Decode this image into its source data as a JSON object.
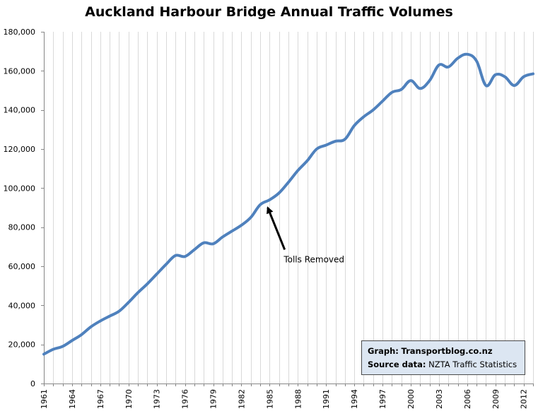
{
  "chart_data": {
    "type": "line",
    "title": "Auckland Harbour Bridge Annual Traffic Volumes",
    "xlabel": "",
    "ylabel": "",
    "xlim": [
      1961,
      2013
    ],
    "ylim": [
      0,
      180000
    ],
    "yticks": [
      0,
      20000,
      40000,
      60000,
      80000,
      100000,
      120000,
      140000,
      160000,
      180000
    ],
    "ytick_labels": [
      "0",
      "20,000",
      "40,000",
      "60,000",
      "80,000",
      "100,000",
      "120,000",
      "140,000",
      "160,000",
      "180,000"
    ],
    "xtick_labels": [
      "1961",
      "1964",
      "1967",
      "1970",
      "1973",
      "1976",
      "1979",
      "1982",
      "1985",
      "1988",
      "1991",
      "1994",
      "1997",
      "2000",
      "2003",
      "2006",
      "2009",
      "2012"
    ],
    "grid": "vertical-every-year",
    "series": [
      {
        "name": "Annual traffic volume",
        "color": "#4f81bd",
        "x": [
          1961,
          1962,
          1963,
          1964,
          1965,
          1966,
          1967,
          1968,
          1969,
          1970,
          1971,
          1972,
          1973,
          1974,
          1975,
          1976,
          1977,
          1978,
          1979,
          1980,
          1981,
          1982,
          1983,
          1984,
          1985,
          1986,
          1987,
          1988,
          1989,
          1990,
          1991,
          1992,
          1993,
          1994,
          1995,
          1996,
          1997,
          1998,
          1999,
          2000,
          2001,
          2002,
          2003,
          2004,
          2005,
          2006,
          2007,
          2008,
          2009,
          2010,
          2011,
          2012,
          2013
        ],
        "values": [
          15000,
          17500,
          19000,
          22000,
          25000,
          29000,
          32000,
          34500,
          37000,
          41500,
          46500,
          51000,
          56000,
          61000,
          65500,
          65000,
          68500,
          72000,
          71500,
          75000,
          78000,
          81000,
          85000,
          91500,
          94000,
          97500,
          103000,
          109000,
          114000,
          120000,
          122000,
          124000,
          125000,
          132000,
          136500,
          140000,
          144500,
          149000,
          150500,
          155000,
          151000,
          155000,
          163000,
          162000,
          166500,
          168500,
          165000,
          152500,
          158000,
          157000,
          152500,
          157000,
          158500
        ]
      }
    ],
    "annotations": [
      {
        "text": "Tolls Removed",
        "points_to": {
          "x": 1984.8,
          "y": 90000
        },
        "arrow_from": {
          "x": 1986.6,
          "y": 68500
        },
        "text_anchor": {
          "x": 1986.5,
          "y": 62000
        }
      }
    ]
  },
  "source_box": {
    "graph_label": "Graph:",
    "graph_value": "Transportblog.co.nz",
    "source_label": "Source data:",
    "source_value": "NZTA Traffic Statistics"
  },
  "colors": {
    "line": "#4f81bd",
    "grid": "#d9d9d9",
    "axis": "#868686",
    "box_fill": "#dce6f2"
  }
}
